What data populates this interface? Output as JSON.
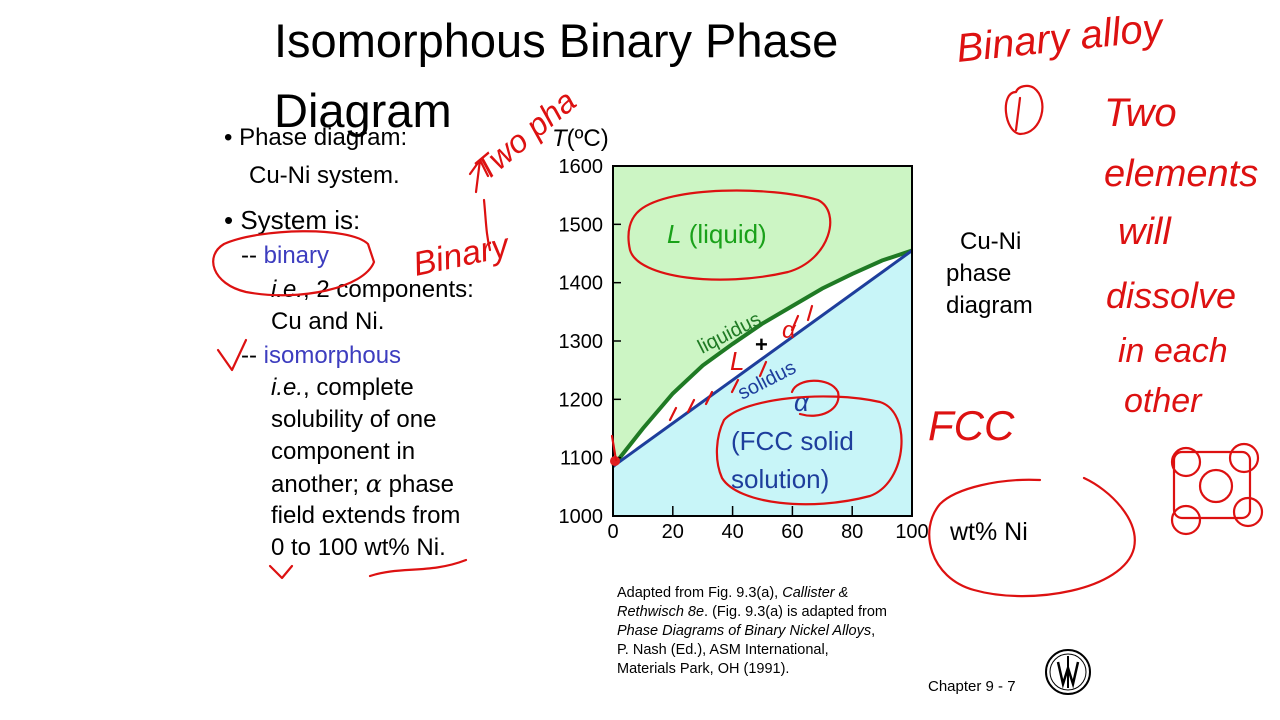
{
  "slide": {
    "title": "Isomorphous Binary Phase Diagram",
    "bullets": {
      "b1": "• Phase diagram:",
      "b1_sub": "Cu-Ni system.",
      "b2": "• System is:",
      "dash1": "-- ",
      "binary": "binary",
      "ie1_em": "i.e.",
      "ie1_rest": ", 2 components:",
      "ie1_line2": "Cu and Ni.",
      "dash2": "-- ",
      "isomorphous": "isomorphous",
      "ie2_em": "i.e.",
      "ie2_rest": ", complete",
      "l3": "solubility of one",
      "l4": "component in",
      "l5a": "another; ",
      "alpha": "α",
      "l5b": " phase",
      "l6": "field extends from",
      "l7": "0 to 100 wt% Ni."
    },
    "side_label": [
      "Cu-Ni",
      "phase",
      "diagram"
    ],
    "caption": {
      "a1": "Adapted from Fig. 9.3(a), ",
      "a1_em": "Callister &",
      "a2_em": "Rethwisch 8e",
      "a2": ". (Fig. 9.3(a) is adapted from",
      "a3_em": "Phase Diagrams of Binary Nickel Alloys",
      "a3": ",",
      "a4": "P. Nash (Ed.), ASM International,",
      "a5": "Materials Park, OH (1991)."
    },
    "footer": "Chapter 9 -    7",
    "handwriting": [
      "Binary alloy",
      "Two",
      "elements",
      "will",
      "dissolve",
      "in each",
      "other",
      "FCC",
      "Two pha",
      "Binary",
      "L",
      "α"
    ]
  },
  "chart_data": {
    "type": "area",
    "title": "",
    "ylabel_italic": "T",
    "ylabel_rest": "(ºC)",
    "xlabel": "wt% Ni",
    "xlim": [
      0,
      100
    ],
    "ylim": [
      1000,
      1600
    ],
    "xticks": [
      "0",
      "20",
      "40",
      "60",
      "80",
      "100"
    ],
    "yticks": [
      "1000",
      "1100",
      "1200",
      "1300",
      "1400",
      "1500",
      "1600"
    ],
    "series": [
      {
        "name": "liquidus",
        "x": [
          0,
          10,
          20,
          30,
          40,
          50,
          60,
          70,
          80,
          90,
          100
        ],
        "y": [
          1085,
          1150,
          1210,
          1258,
          1295,
          1330,
          1360,
          1390,
          1415,
          1438,
          1455
        ]
      },
      {
        "name": "solidus",
        "x": [
          0,
          100
        ],
        "y": [
          1085,
          1455
        ]
      }
    ],
    "regions": {
      "liquid_em": "L",
      "liquid_rest": " (liquid)",
      "solid_alpha": "α",
      "solid_line1": "(FCC solid",
      "solid_line2": "solution)"
    },
    "curve_labels": [
      "liquidus",
      "solidus"
    ],
    "point_marker": "+",
    "colors": {
      "liquid": "#ccf5c4",
      "solid": "#c8f5f8",
      "liquidus": "#1f7a24",
      "solidus": "#1e3e9c",
      "liquid_text": "#1aa11a",
      "solid_text": "#1e3e9c"
    }
  }
}
